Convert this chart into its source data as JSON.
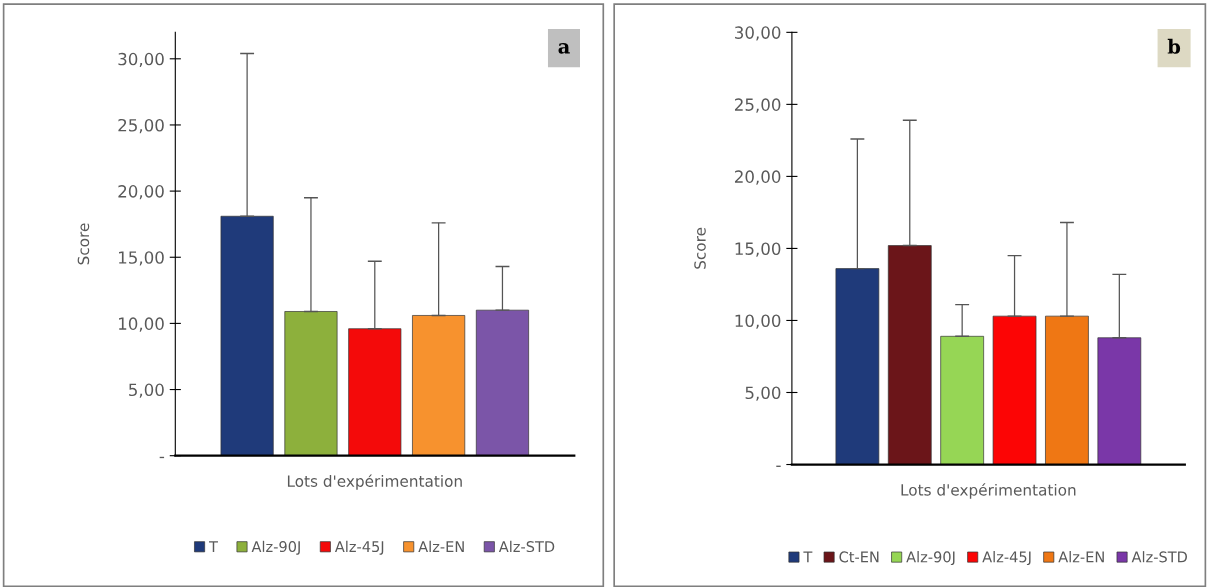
{
  "chart_data": [
    {
      "type": "bar",
      "categories": [
        null
      ],
      "xlabel": "Lots d'expérimentation",
      "ylabel": "Score",
      "annotations": [
        "a"
      ],
      "ylim": [
        0,
        32
      ],
      "yticks": [
        {
          "value": 0,
          "label": "-"
        },
        {
          "value": 5,
          "label": "5,00"
        },
        {
          "value": 10,
          "label": "10,00"
        },
        {
          "value": 15,
          "label": "15,00"
        },
        {
          "value": 20,
          "label": "20,00"
        },
        {
          "value": 25,
          "label": "25,00"
        },
        {
          "value": 30,
          "label": "30,00"
        }
      ],
      "legend": "bottom",
      "grid": false,
      "series": [
        {
          "name": "T",
          "color": "#1f3a7a",
          "values": [
            18.1
          ],
          "errors": [
            [
              18.1,
              30.4
            ]
          ]
        },
        {
          "name": "Alz-90J",
          "color": "#8db03c",
          "values": [
            10.9
          ],
          "errors": [
            [
              10.9,
              19.5
            ]
          ]
        },
        {
          "name": "Alz-45J",
          "color": "#f40a0a",
          "values": [
            9.6
          ],
          "errors": [
            [
              9.6,
              14.7
            ]
          ]
        },
        {
          "name": "Alz-EN",
          "color": "#f7922e",
          "values": [
            10.6
          ],
          "errors": [
            [
              10.6,
              17.6
            ]
          ]
        },
        {
          "name": "Alz-STD",
          "color": "#7b55a8",
          "values": [
            11.0
          ],
          "errors": [
            [
              11.0,
              14.3
            ]
          ]
        }
      ]
    },
    {
      "type": "bar",
      "categories": [
        null
      ],
      "xlabel": "Lots d'expérimentation",
      "ylabel": "Score",
      "annotations": [
        "b"
      ],
      "ylim": [
        0,
        30
      ],
      "yticks": [
        {
          "value": 0,
          "label": "-"
        },
        {
          "value": 5,
          "label": "5,00"
        },
        {
          "value": 10,
          "label": "10,00"
        },
        {
          "value": 15,
          "label": "15,00"
        },
        {
          "value": 20,
          "label": "20,00"
        },
        {
          "value": 25,
          "label": "25,00"
        },
        {
          "value": 30,
          "label": "30,00"
        }
      ],
      "legend": "bottom",
      "grid": false,
      "series": [
        {
          "name": "T",
          "color": "#1f3a7a",
          "values": [
            13.6
          ],
          "errors": [
            [
              13.6,
              22.6
            ]
          ]
        },
        {
          "name": "Ct-EN",
          "color": "#6b1519",
          "values": [
            15.2
          ],
          "errors": [
            [
              15.2,
              23.9
            ]
          ]
        },
        {
          "name": "Alz-90J",
          "color": "#96d655",
          "values": [
            8.9
          ],
          "errors": [
            [
              8.9,
              11.1
            ]
          ]
        },
        {
          "name": "Alz-45J",
          "color": "#fc0505",
          "values": [
            10.3
          ],
          "errors": [
            [
              10.3,
              14.5
            ]
          ]
        },
        {
          "name": "Alz-EN",
          "color": "#ef7714",
          "values": [
            10.3
          ],
          "errors": [
            [
              10.3,
              16.8
            ]
          ]
        },
        {
          "name": "Alz-STD",
          "color": "#7a37a8",
          "values": [
            8.8
          ],
          "errors": [
            [
              8.8,
              13.2
            ]
          ]
        }
      ]
    }
  ]
}
